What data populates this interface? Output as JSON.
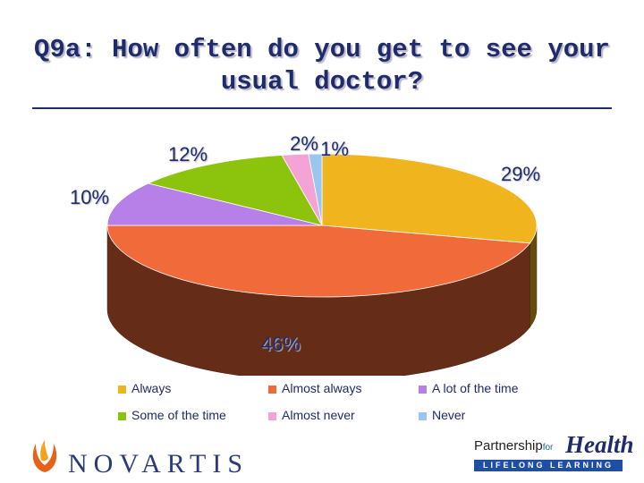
{
  "title": "Q9a: How often do you get to see your usual doctor?",
  "chart_data": {
    "type": "pie",
    "title": "Q9a: How often do you get to see your usual doctor?",
    "series": [
      {
        "name": "Always",
        "value": 29,
        "label": "29%",
        "color": "#F0B41E"
      },
      {
        "name": "Almost always",
        "value": 46,
        "label": "46%",
        "color": "#F06A3A"
      },
      {
        "name": "A lot of the time",
        "value": 10,
        "label": "10%",
        "color": "#B77FE8"
      },
      {
        "name": "Some of the time",
        "value": 12,
        "label": "12%",
        "color": "#8CC30C"
      },
      {
        "name": "Almost never",
        "value": 2,
        "label": "2%",
        "color": "#F3A3D6"
      },
      {
        "name": "Never",
        "value": 1,
        "label": "1%",
        "color": "#98C6EE"
      }
    ],
    "legend_position": "bottom"
  },
  "logos": {
    "novartis": "NOVARTIS",
    "partnership_prefix": "Partnership",
    "partnership_for": "for",
    "partnership_health": "Health",
    "partnership_tagline": "LIFELONG LEARNING"
  }
}
